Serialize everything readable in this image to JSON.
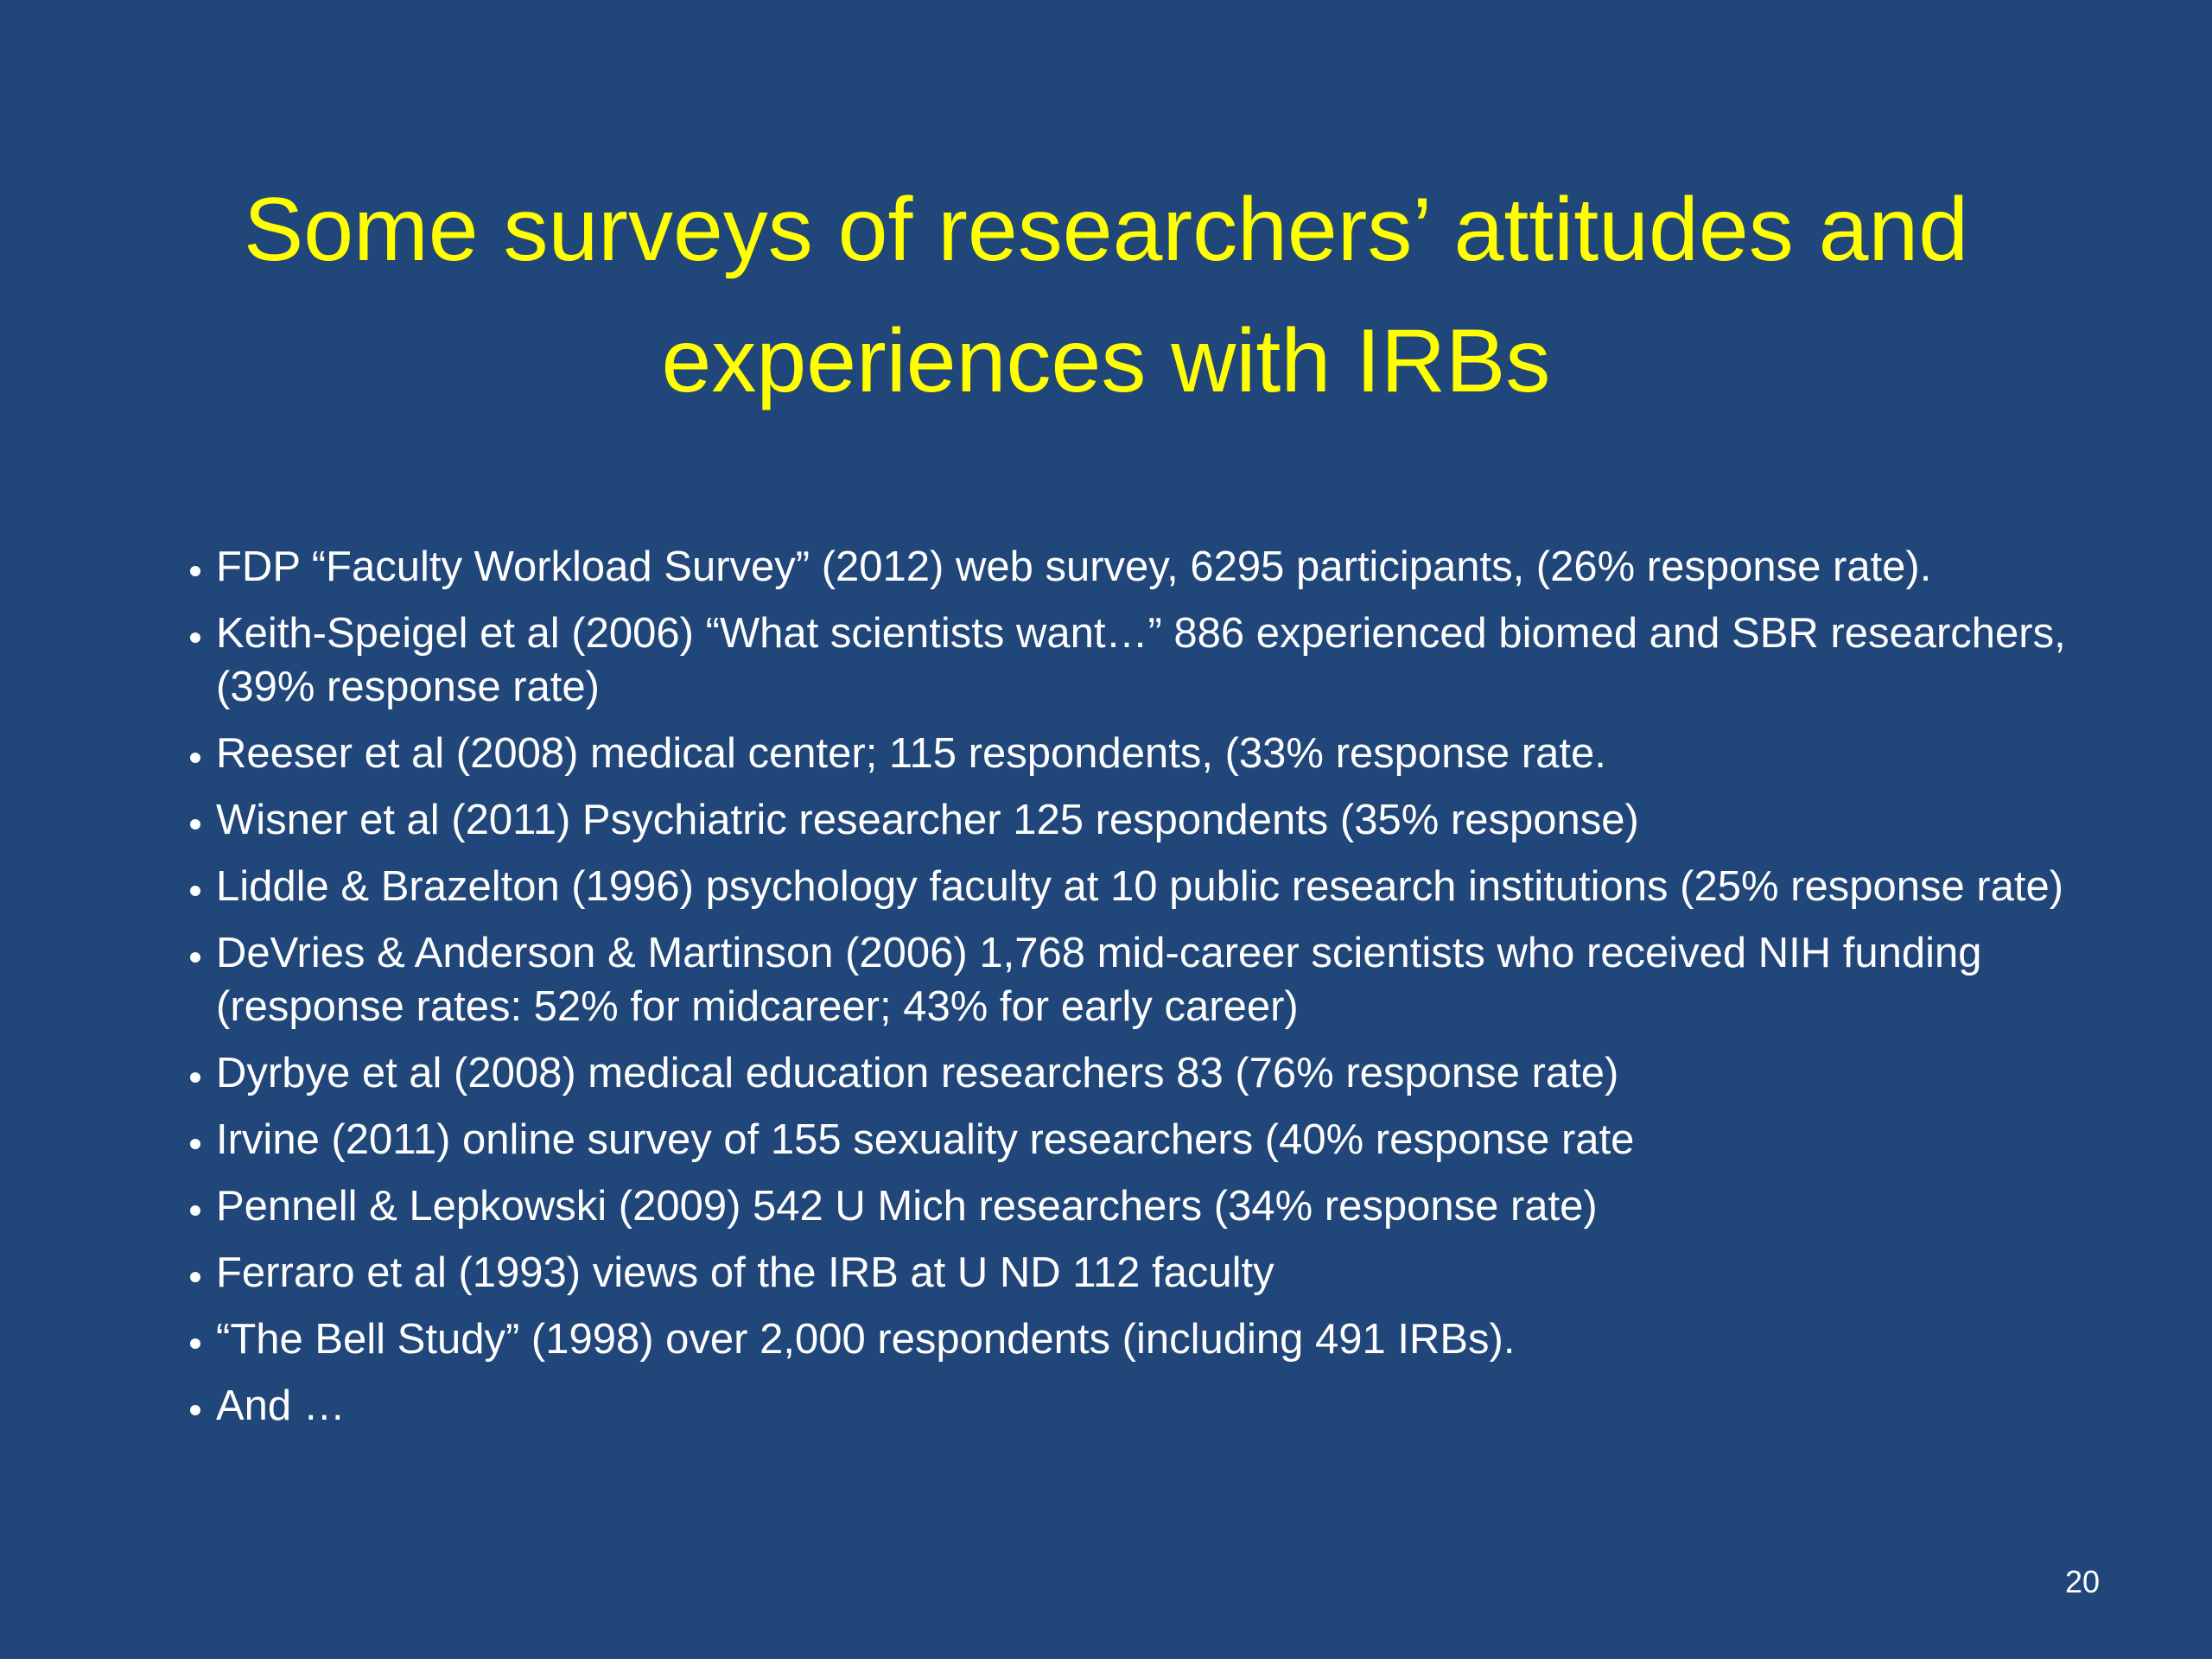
{
  "slide": {
    "title": "Some surveys of researchers’ attitudes and experiences with IRBs",
    "bullets": [
      "FDP “Faculty Workload Survey” (2012) web survey, 6295 participants, (26% response rate).",
      "Keith-Speigel et al (2006) “What scientists want…” 886 experienced biomed and SBR researchers,  (39% response rate)",
      "Reeser et al (2008) medical center; 115 respondents, (33% response rate.",
      "Wisner et al (2011) Psychiatric researcher 125 respondents (35% response)",
      "Liddle & Brazelton (1996) psychology faculty at 10 public research institutions (25% response rate)",
      "DeVries & Anderson & Martinson (2006) 1,768 mid-career scientists who received NIH funding (response rates: 52% for midcareer; 43% for early career)",
      "Dyrbye et al (2008) medical education researchers 83 (76% response rate)",
      "Irvine (2011) online survey of 155  sexuality researchers  (40% response rate",
      "Pennell & Lepkowski (2009) 542 U Mich researchers (34% response rate)",
      "Ferraro et al (1993) views of the IRB at U ND 112 faculty",
      "“The Bell Study” (1998) over 2,000 respondents (including 491 IRBs).",
      "And …"
    ],
    "page_number": "20"
  }
}
